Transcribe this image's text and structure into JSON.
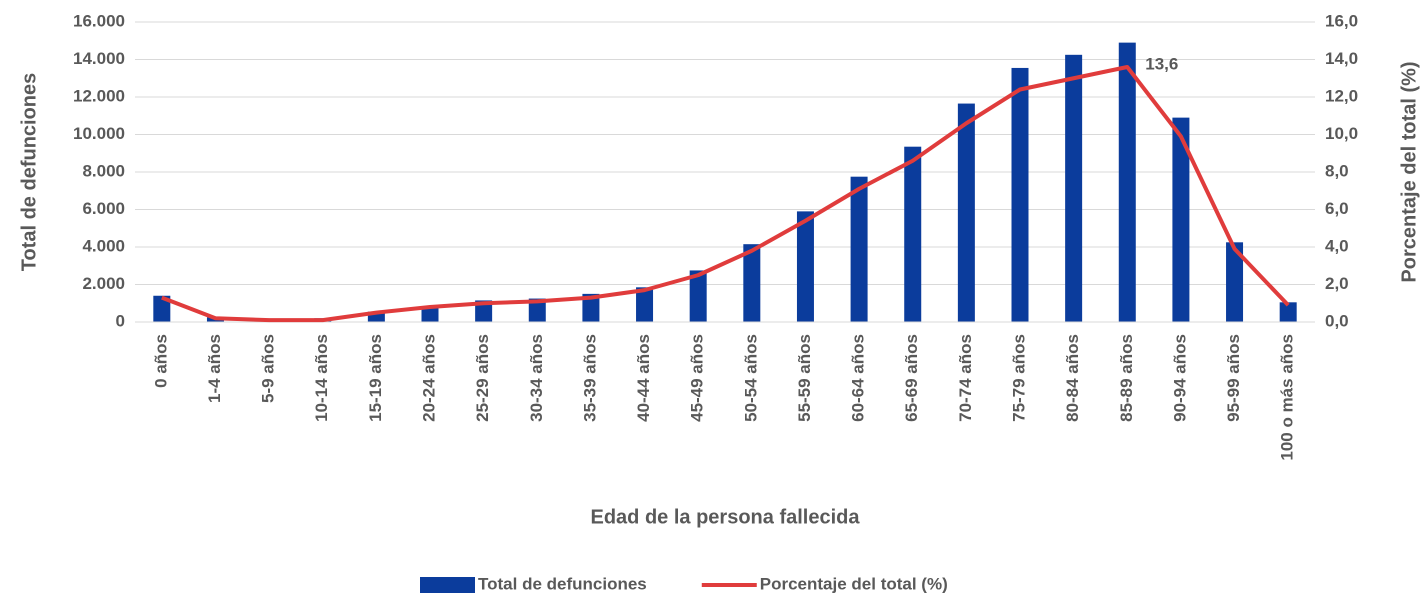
{
  "chart_data": {
    "type": "bar_line",
    "x_label": "Edad de la persona fallecida",
    "y_label": "Total de defunciones",
    "y2_label": "Porcentaje del total (%)",
    "categories": [
      "0 años",
      "1-4 años",
      "5-9 años",
      "10-14 años",
      "15-19 años",
      "20-24 años",
      "25-29 años",
      "30-34 años",
      "35-39 años",
      "40-44 años",
      "45-49 años",
      "50-54 años",
      "55-59 años",
      "60-64 años",
      "65-69 años",
      "70-74 años",
      "75-79 años",
      "80-84 años",
      "85-89 años",
      "90-94 años",
      "95-99 años",
      "100 o más años"
    ],
    "series": [
      {
        "name": "Total de defunciones",
        "type": "bar",
        "color": "#0b3c9c",
        "values": [
          1400,
          250,
          150,
          200,
          550,
          850,
          1150,
          1250,
          1500,
          1850,
          2750,
          4150,
          5900,
          7750,
          9350,
          11650,
          13550,
          14250,
          14900,
          10900,
          4250,
          1050
        ]
      },
      {
        "name": "Porcentaje del total (%)",
        "type": "line",
        "axis": "y2",
        "color": "#e03c3c",
        "values": [
          1.3,
          0.2,
          0.1,
          0.1,
          0.5,
          0.8,
          1.0,
          1.1,
          1.3,
          1.7,
          2.5,
          3.8,
          5.4,
          7.1,
          8.6,
          10.6,
          12.4,
          13.0,
          13.6,
          9.9,
          3.9,
          0.9
        ],
        "value_labels": [
          null,
          null,
          null,
          null,
          null,
          null,
          null,
          null,
          null,
          null,
          null,
          null,
          null,
          null,
          null,
          null,
          null,
          null,
          "13,6",
          null,
          null,
          null
        ]
      }
    ],
    "ylim": [
      0,
      16000
    ],
    "yticks": [
      0,
      {
        "value": 2000,
        "label": "2.000"
      },
      {
        "value": 4000,
        "label": "4.000"
      },
      {
        "value": 6000,
        "label": "6.000"
      },
      {
        "value": 8000,
        "label": "8.000"
      },
      {
        "value": 10000,
        "label": "10.000"
      },
      {
        "value": 12000,
        "label": "12.000"
      },
      {
        "value": 14000,
        "label": "14.000"
      },
      {
        "value": 16000,
        "label": "16.000"
      }
    ],
    "y2lim": [
      0,
      16
    ],
    "y2ticks": [
      {
        "value": 0,
        "label": "0,0"
      },
      {
        "value": 2,
        "label": "2,0"
      },
      {
        "value": 4,
        "label": "4,0"
      },
      {
        "value": 6,
        "label": "6,0"
      },
      {
        "value": 8,
        "label": "8,0"
      },
      {
        "value": 10,
        "label": "10,0"
      },
      {
        "value": 12,
        "label": "12,0"
      },
      {
        "value": 14,
        "label": "14,0"
      },
      {
        "value": 16,
        "label": "16,0"
      }
    ],
    "grid": true,
    "legend": "bottom"
  }
}
